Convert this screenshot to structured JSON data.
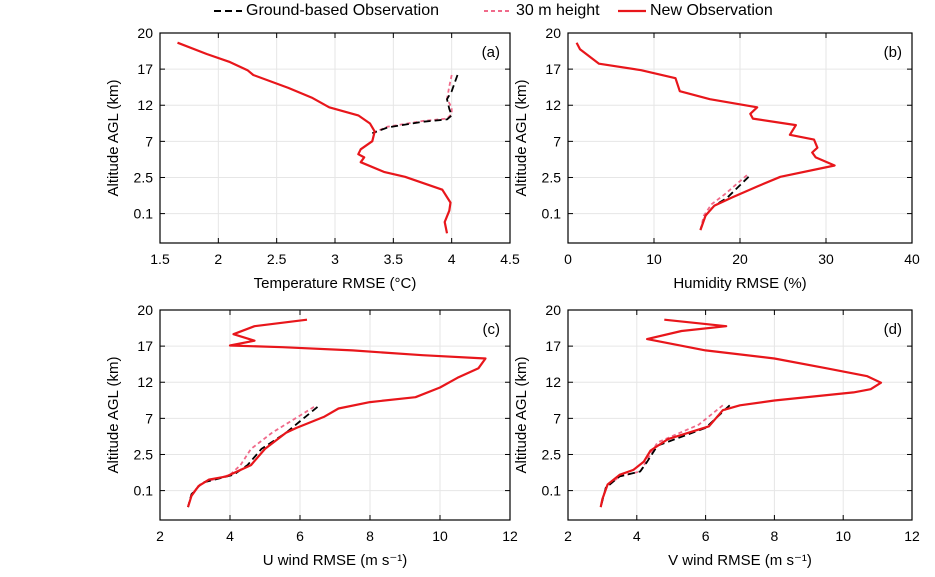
{
  "legend": [
    {
      "label": "Ground-based Observation",
      "color": "#000000",
      "dash": "7,4"
    },
    {
      "label": "30 m height",
      "color": "#f06a8a",
      "dash": "4,3"
    },
    {
      "label": "New Observation",
      "color": "#e8161b",
      "dash": ""
    }
  ],
  "chart_data": [
    {
      "type": "line",
      "panel_label": "(a)",
      "xlabel": "Temperature RMSE (°C)",
      "ylabel": "Altitude AGL (km)",
      "xlim": [
        1.5,
        4.5
      ],
      "xticks": [
        1.5,
        2,
        2.5,
        3,
        3.5,
        4,
        4.5
      ],
      "yticks": [
        "20",
        "17",
        "12",
        "7",
        "2.5",
        "0.1"
      ],
      "grid": true,
      "series": [
        {
          "name": "Ground-based Observation",
          "points": [
            [
              4.05,
              -2.6
            ],
            [
              4.0,
              -3.6
            ],
            [
              3.96,
              -4.1
            ],
            [
              3.98,
              -4.7
            ],
            [
              4.0,
              -5.1
            ],
            [
              3.96,
              -5.35
            ],
            [
              3.75,
              -5.5
            ],
            [
              3.45,
              -5.85
            ],
            [
              3.32,
              -6.2
            ]
          ]
        },
        {
          "name": "30 m height",
          "points": [
            [
              4.0,
              -2.6
            ],
            [
              3.98,
              -3.3
            ],
            [
              3.96,
              -4.1
            ],
            [
              4.0,
              -4.6
            ],
            [
              4.0,
              -5.0
            ],
            [
              3.96,
              -5.3
            ],
            [
              3.75,
              -5.45
            ],
            [
              3.45,
              -5.8
            ],
            [
              3.32,
              -6.2
            ]
          ]
        },
        {
          "name": "New Observation",
          "points": [
            [
              1.65,
              -0.6
            ],
            [
              1.9,
              -1.3
            ],
            [
              2.1,
              -1.8
            ],
            [
              2.25,
              -2.3
            ],
            [
              2.3,
              -2.6
            ],
            [
              2.6,
              -3.4
            ],
            [
              2.8,
              -4.0
            ],
            [
              2.95,
              -4.6
            ],
            [
              3.2,
              -5.1
            ],
            [
              3.3,
              -5.6
            ],
            [
              3.34,
              -6.1
            ],
            [
              3.32,
              -6.7
            ],
            [
              3.22,
              -7.2
            ],
            [
              3.2,
              -7.5
            ],
            [
              3.25,
              -7.7
            ],
            [
              3.22,
              -8.0
            ],
            [
              3.42,
              -8.6
            ],
            [
              3.6,
              -8.9
            ],
            [
              3.92,
              -9.7
            ],
            [
              3.99,
              -10.5
            ],
            [
              3.98,
              -11.0
            ],
            [
              3.94,
              -11.7
            ],
            [
              3.96,
              -12.4
            ]
          ]
        }
      ]
    },
    {
      "type": "line",
      "panel_label": "(b)",
      "xlabel": "Humidity RMSE (%)",
      "ylabel": "Altitude AGL (km)",
      "xlim": [
        0,
        40
      ],
      "xticks": [
        0,
        10,
        20,
        30,
        40
      ],
      "yticks": [
        "20",
        "17",
        "12",
        "7",
        "2.5",
        "0.1"
      ],
      "grid": true,
      "series": [
        {
          "name": "Ground-based Observation",
          "points": [
            [
              21.0,
              -8.9
            ],
            [
              18.5,
              -10.2
            ],
            [
              17.0,
              -10.7
            ],
            [
              16.0,
              -11.3
            ],
            [
              15.4,
              -12.2
            ]
          ]
        },
        {
          "name": "30 m height",
          "points": [
            [
              20.8,
              -8.8
            ],
            [
              18.2,
              -10.0
            ],
            [
              16.7,
              -10.6
            ],
            [
              15.8,
              -11.3
            ],
            [
              15.4,
              -12.2
            ]
          ]
        },
        {
          "name": "New Observation",
          "points": [
            [
              1.0,
              -0.6
            ],
            [
              1.4,
              -1.0
            ],
            [
              3.6,
              -1.9
            ],
            [
              8.5,
              -2.3
            ],
            [
              12.5,
              -2.8
            ],
            [
              13.0,
              -3.6
            ],
            [
              16.5,
              -4.1
            ],
            [
              22.0,
              -4.6
            ],
            [
              21.2,
              -5.0
            ],
            [
              21.5,
              -5.3
            ],
            [
              26.5,
              -5.7
            ],
            [
              25.8,
              -6.3
            ],
            [
              28.6,
              -6.6
            ],
            [
              29.0,
              -7.1
            ],
            [
              28.4,
              -7.4
            ],
            [
              28.8,
              -7.7
            ],
            [
              31.0,
              -8.2
            ],
            [
              24.7,
              -8.9
            ],
            [
              22.0,
              -9.5
            ],
            [
              19.0,
              -10.2
            ],
            [
              17.0,
              -10.7
            ],
            [
              16.0,
              -11.3
            ],
            [
              15.4,
              -12.2
            ]
          ]
        }
      ]
    },
    {
      "type": "line",
      "panel_label": "(c)",
      "xlabel": "U wind RMSE (m s⁻¹)",
      "ylabel": "Altitude AGL (km)",
      "xlim": [
        2,
        12
      ],
      "xticks": [
        2,
        4,
        6,
        8,
        10,
        12
      ],
      "yticks": [
        "20",
        "17",
        "12",
        "7",
        "2.5",
        "0.1"
      ],
      "grid": true,
      "series": [
        {
          "name": "Ground-based Observation",
          "points": [
            [
              6.5,
              -6.0
            ],
            [
              5.6,
              -7.6
            ],
            [
              4.9,
              -8.6
            ],
            [
              4.5,
              -9.6
            ],
            [
              4.1,
              -10.2
            ],
            [
              3.2,
              -10.7
            ],
            [
              2.9,
              -11.4
            ],
            [
              2.8,
              -12.2
            ]
          ]
        },
        {
          "name": "30 m height",
          "points": [
            [
              6.4,
              -6.0
            ],
            [
              5.2,
              -7.6
            ],
            [
              4.6,
              -8.6
            ],
            [
              4.3,
              -9.6
            ],
            [
              4.0,
              -10.2
            ],
            [
              3.2,
              -10.7
            ],
            [
              2.9,
              -11.4
            ],
            [
              2.8,
              -12.2
            ]
          ]
        },
        {
          "name": "New Observation",
          "points": [
            [
              6.2,
              -0.6
            ],
            [
              4.7,
              -1.0
            ],
            [
              4.1,
              -1.5
            ],
            [
              4.7,
              -1.9
            ],
            [
              4.0,
              -2.2
            ],
            [
              5.5,
              -2.3
            ],
            [
              7.5,
              -2.5
            ],
            [
              9.5,
              -2.8
            ],
            [
              11.3,
              -3.0
            ],
            [
              11.1,
              -3.6
            ],
            [
              10.5,
              -4.2
            ],
            [
              10.0,
              -4.8
            ],
            [
              9.3,
              -5.4
            ],
            [
              8.0,
              -5.7
            ],
            [
              7.1,
              -6.1
            ],
            [
              6.7,
              -6.6
            ],
            [
              5.9,
              -7.3
            ],
            [
              5.6,
              -7.6
            ],
            [
              5.0,
              -8.6
            ],
            [
              4.6,
              -9.6
            ],
            [
              3.9,
              -10.3
            ],
            [
              3.4,
              -10.5
            ],
            [
              3.1,
              -10.9
            ],
            [
              2.9,
              -11.5
            ],
            [
              2.8,
              -12.2
            ]
          ]
        }
      ]
    },
    {
      "type": "line",
      "panel_label": "(d)",
      "xlabel": "V wind RMSE (m s⁻¹)",
      "ylabel": "Altitude AGL (km)",
      "xlim": [
        2,
        12
      ],
      "xticks": [
        2,
        4,
        6,
        8,
        10,
        12
      ],
      "yticks": [
        "20",
        "17",
        "12",
        "7",
        "2.5",
        "0.1"
      ],
      "grid": true,
      "series": [
        {
          "name": "Ground-based Observation",
          "points": [
            [
              6.7,
              -5.9
            ],
            [
              6.0,
              -7.3
            ],
            [
              4.6,
              -8.4
            ],
            [
              4.3,
              -9.4
            ],
            [
              4.1,
              -10.0
            ],
            [
              3.5,
              -10.3
            ],
            [
              3.1,
              -11.0
            ],
            [
              2.95,
              -12.2
            ]
          ]
        },
        {
          "name": "30 m height",
          "points": [
            [
              6.5,
              -5.9
            ],
            [
              5.8,
              -7.1
            ],
            [
              4.6,
              -8.2
            ],
            [
              4.3,
              -9.3
            ],
            [
              4.1,
              -10.0
            ],
            [
              3.5,
              -10.3
            ],
            [
              3.1,
              -11.0
            ],
            [
              2.95,
              -12.2
            ]
          ]
        },
        {
          "name": "New Observation",
          "points": [
            [
              4.8,
              -0.6
            ],
            [
              6.6,
              -1.0
            ],
            [
              5.3,
              -1.3
            ],
            [
              4.3,
              -1.8
            ],
            [
              6.0,
              -2.5
            ],
            [
              8.0,
              -3.0
            ],
            [
              9.5,
              -3.6
            ],
            [
              10.7,
              -4.1
            ],
            [
              11.1,
              -4.5
            ],
            [
              10.8,
              -4.9
            ],
            [
              10.3,
              -5.1
            ],
            [
              8.0,
              -5.6
            ],
            [
              7.0,
              -5.9
            ],
            [
              6.5,
              -6.2
            ],
            [
              6.1,
              -7.2
            ],
            [
              4.9,
              -8.0
            ],
            [
              4.4,
              -8.7
            ],
            [
              4.2,
              -9.4
            ],
            [
              3.9,
              -9.9
            ],
            [
              3.5,
              -10.2
            ],
            [
              3.15,
              -10.8
            ],
            [
              3.0,
              -11.7
            ],
            [
              2.95,
              -12.2
            ]
          ]
        }
      ]
    }
  ]
}
